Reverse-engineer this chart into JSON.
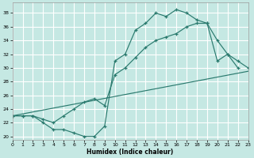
{
  "bg_color": "#c5e8e3",
  "grid_color": "#ffffff",
  "line_color": "#2a7a6e",
  "xlabel": "Humidex (Indice chaleur)",
  "xlim": [
    0,
    23
  ],
  "ylim": [
    19.5,
    39.5
  ],
  "yticks": [
    20,
    22,
    24,
    26,
    28,
    30,
    32,
    34,
    36,
    38
  ],
  "xticks": [
    0,
    1,
    2,
    3,
    4,
    5,
    6,
    7,
    8,
    9,
    10,
    11,
    12,
    13,
    14,
    15,
    16,
    17,
    18,
    19,
    20,
    21,
    22,
    23
  ],
  "curve1_x": [
    0,
    1,
    2,
    3,
    4,
    5,
    6,
    7,
    8,
    9,
    10,
    11,
    12,
    13,
    14,
    15,
    16,
    17,
    18,
    19,
    20,
    21,
    22
  ],
  "curve1_y": [
    23,
    23,
    23,
    22,
    21,
    21,
    20.5,
    20,
    20,
    21.5,
    31,
    32,
    35.5,
    36.5,
    38,
    37.5,
    38.5,
    38,
    37,
    36.5,
    31,
    32,
    30
  ],
  "curve2_x": [
    0,
    1,
    2,
    3,
    4,
    5,
    6,
    7,
    8,
    9,
    10,
    11,
    12,
    13,
    14,
    15,
    16,
    17,
    18,
    19,
    20,
    21,
    22,
    23
  ],
  "curve2_y": [
    23,
    23,
    23,
    22.5,
    22,
    23,
    24,
    25,
    25.5,
    24.5,
    29,
    30,
    31.5,
    33,
    34,
    34.5,
    35,
    36,
    36.5,
    36.5,
    34,
    32,
    31,
    30
  ],
  "curve3_x": [
    0,
    23
  ],
  "curve3_y": [
    23,
    29.5
  ]
}
